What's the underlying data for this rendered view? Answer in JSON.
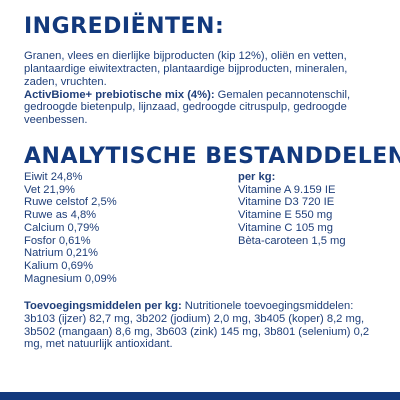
{
  "ingredients": {
    "title": "INGREDIËNTEN:",
    "text": "Granen, vlees en dierlijke bijproducten (kip 12%), oliën en vetten, plantaardige eiwitextracten, plantaardige bijproducten, mineralen, zaden, vruchten.",
    "activbiome_label": "ActivBiome+ prebiotische mix (4%):",
    "activbiome_text": " Gemalen pecannotenschil, gedroogde bietenpulp, lijnzaad, gedroogde citruspulp, gedroogde veenbessen."
  },
  "analytical": {
    "title": "ANALYTISCHE BESTANDDELEN:",
    "constituents": [
      "Eiwit 24,8%",
      "Vet 21,9%",
      "Ruwe celstof 2,5%",
      "Ruwe as 4,8%",
      "Calcium 0,79%",
      "Fosfor 0,61%",
      "Natrium 0,21%",
      "Kalium 0,69%",
      "Magnesium 0,09%"
    ],
    "per_kg_label": "per kg:",
    "vitamins": [
      "Vitamine A 9.159 IE",
      "Vitamine D3 720 IE",
      "Vitamine E 550 mg",
      "Vitamine C 105 mg",
      "Bèta-caroteen 1,5 mg"
    ]
  },
  "additives": {
    "label": "Toevoegingsmiddelen per kg:",
    "text": " Nutritionele toevoegingsmiddelen: 3b103 (ijzer) 82,7 mg, 3b202 (jodium) 2,0 mg, 3b405 (koper) 8,2 mg, 3b502 (mangaan) 8,6 mg, 3b603 (zink) 145 mg, 3b801 (selenium) 0,2 mg, met natuurlijk antioxidant."
  },
  "colors": {
    "heading": "#12397d",
    "text": "#1f3f7a",
    "bar": "#12397d"
  }
}
